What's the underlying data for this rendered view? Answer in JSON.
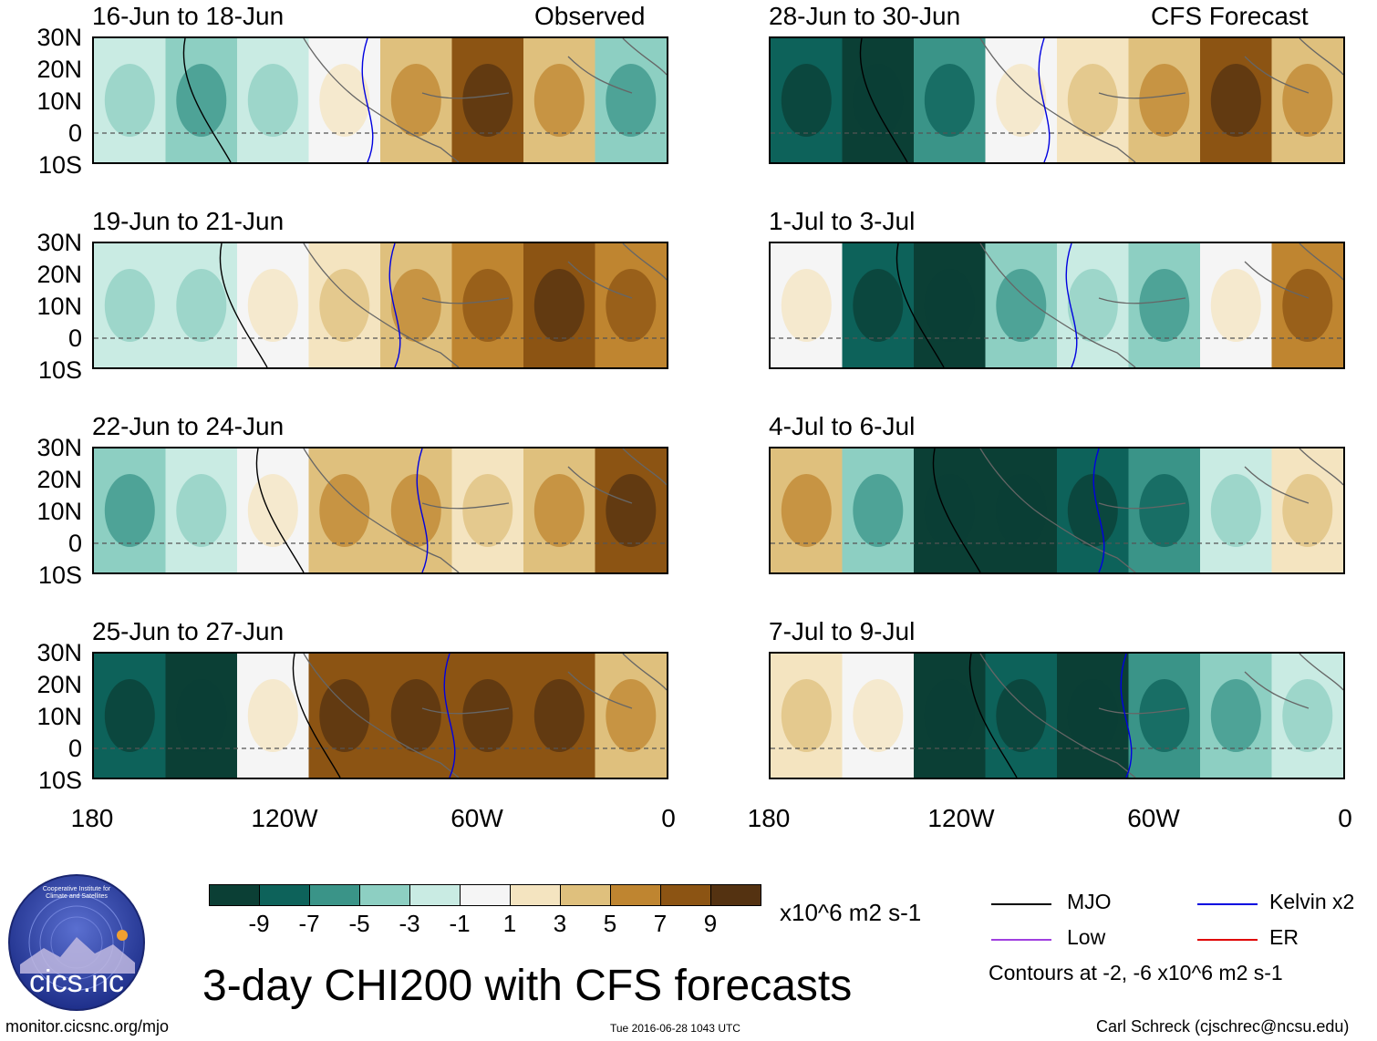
{
  "figure_title": "3-day CHI200 with CFS forecasts",
  "observed_label": "Observed",
  "forecast_label": "CFS Forecast",
  "lat_labels": [
    "30N",
    "20N",
    "10N",
    "0",
    "10S"
  ],
  "lon_labels": [
    "180",
    "120W",
    "60W",
    "0"
  ],
  "panels_left": [
    {
      "title": "16-Jun to 18-Jun",
      "anomaly": [
        -2,
        -3,
        -1,
        1,
        5,
        9,
        5,
        -3
      ]
    },
    {
      "title": "19-Jun to 21-Jun",
      "anomaly": [
        -1,
        -2,
        1,
        3,
        5,
        7,
        9,
        7
      ]
    },
    {
      "title": "22-Jun to 24-Jun",
      "anomaly": [
        -3,
        -2,
        1,
        5,
        5,
        3,
        5,
        9
      ]
    },
    {
      "title": "25-Jun to 27-Jun",
      "anomaly": [
        -7,
        -9,
        1,
        9,
        9,
        9,
        9,
        5
      ]
    }
  ],
  "panels_right": [
    {
      "title": "28-Jun to 30-Jun",
      "anomaly": [
        -7,
        -9,
        -5,
        1,
        3,
        5,
        9,
        5
      ]
    },
    {
      "title": "1-Jul to 3-Jul",
      "anomaly": [
        1,
        -7,
        -9,
        -3,
        -1,
        -3,
        1,
        7
      ]
    },
    {
      "title": "4-Jul to 6-Jul",
      "anomaly": [
        5,
        -3,
        -9,
        -9,
        -7,
        -5,
        -1,
        3
      ]
    },
    {
      "title": "7-Jul to 9-Jul",
      "anomaly": [
        3,
        1,
        -9,
        -7,
        -9,
        -5,
        -3,
        -1
      ]
    }
  ],
  "colorbar": {
    "ticks": [
      "-9",
      "-7",
      "-5",
      "-3",
      "-1",
      "1",
      "3",
      "5",
      "7",
      "9"
    ],
    "units": "x10^6 m2 s-1",
    "colors": [
      "#0b3f35",
      "#0d625a",
      "#3a9488",
      "#8dcfc2",
      "#c9ebe3",
      "#f5f5f5",
      "#f4e4c0",
      "#dfc07d",
      "#bf8530",
      "#8c5413",
      "#543211"
    ]
  },
  "legend": {
    "items": [
      {
        "label": "MJO",
        "color": "#000000"
      },
      {
        "label": "Kelvin x2",
        "color": "#0000e0"
      },
      {
        "label": "Low",
        "color": "#a040e0"
      },
      {
        "label": "ER",
        "color": "#e00000"
      }
    ],
    "contour_note": "Contours at -2, -6 x10^6 m2 s-1"
  },
  "logo_text": "cics.nc",
  "logo_ring_text": "Cooperative Institute for Climate and Satellites",
  "footer_left": "monitor.cicsnc.org/mjo",
  "footer_center": "Tue 2016-06-28 1043 UTC",
  "footer_right": "Carl Schreck (cjschrec@ncsu.edu)"
}
